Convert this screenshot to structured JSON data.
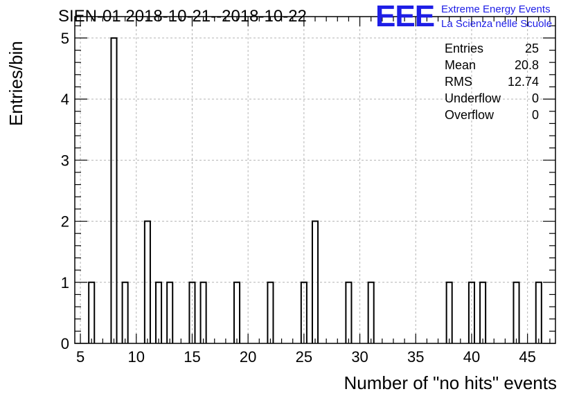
{
  "chart_data": {
    "type": "bar",
    "title": "SIEN-01 2018-10-21--2018-10-22",
    "xlabel": "Number of \"no hits\" events",
    "ylabel": "Entries/bin",
    "xlim": [
      4.5,
      47.5
    ],
    "ylim": [
      0,
      5.35
    ],
    "bin_width": 0.5,
    "xticks": [
      5,
      10,
      15,
      20,
      25,
      30,
      35,
      40,
      45
    ],
    "yticks": [
      0,
      1,
      2,
      3,
      4,
      5
    ],
    "grid": true,
    "bins": [
      {
        "x": 6,
        "count": 1
      },
      {
        "x": 8,
        "count": 5
      },
      {
        "x": 9,
        "count": 1
      },
      {
        "x": 11,
        "count": 2
      },
      {
        "x": 12,
        "count": 1
      },
      {
        "x": 13,
        "count": 1
      },
      {
        "x": 15,
        "count": 1
      },
      {
        "x": 16,
        "count": 1
      },
      {
        "x": 19,
        "count": 1
      },
      {
        "x": 22,
        "count": 1
      },
      {
        "x": 25,
        "count": 1
      },
      {
        "x": 26,
        "count": 2
      },
      {
        "x": 29,
        "count": 1
      },
      {
        "x": 31,
        "count": 1
      },
      {
        "x": 38,
        "count": 1
      },
      {
        "x": 40,
        "count": 1
      },
      {
        "x": 41,
        "count": 1
      },
      {
        "x": 44,
        "count": 1
      },
      {
        "x": 46,
        "count": 1
      }
    ],
    "stats": [
      {
        "label": "Entries",
        "value": "25"
      },
      {
        "label": "Mean",
        "value": "20.8"
      },
      {
        "label": "RMS",
        "value": "12.74"
      },
      {
        "label": "Underflow",
        "value": "0"
      },
      {
        "label": "Overflow",
        "value": "0"
      }
    ]
  },
  "logo": {
    "mark": "EEE",
    "line1": "Extreme Energy Events",
    "line2": "La Scienza nelle Scuole",
    "color": "#1e1ee6"
  }
}
